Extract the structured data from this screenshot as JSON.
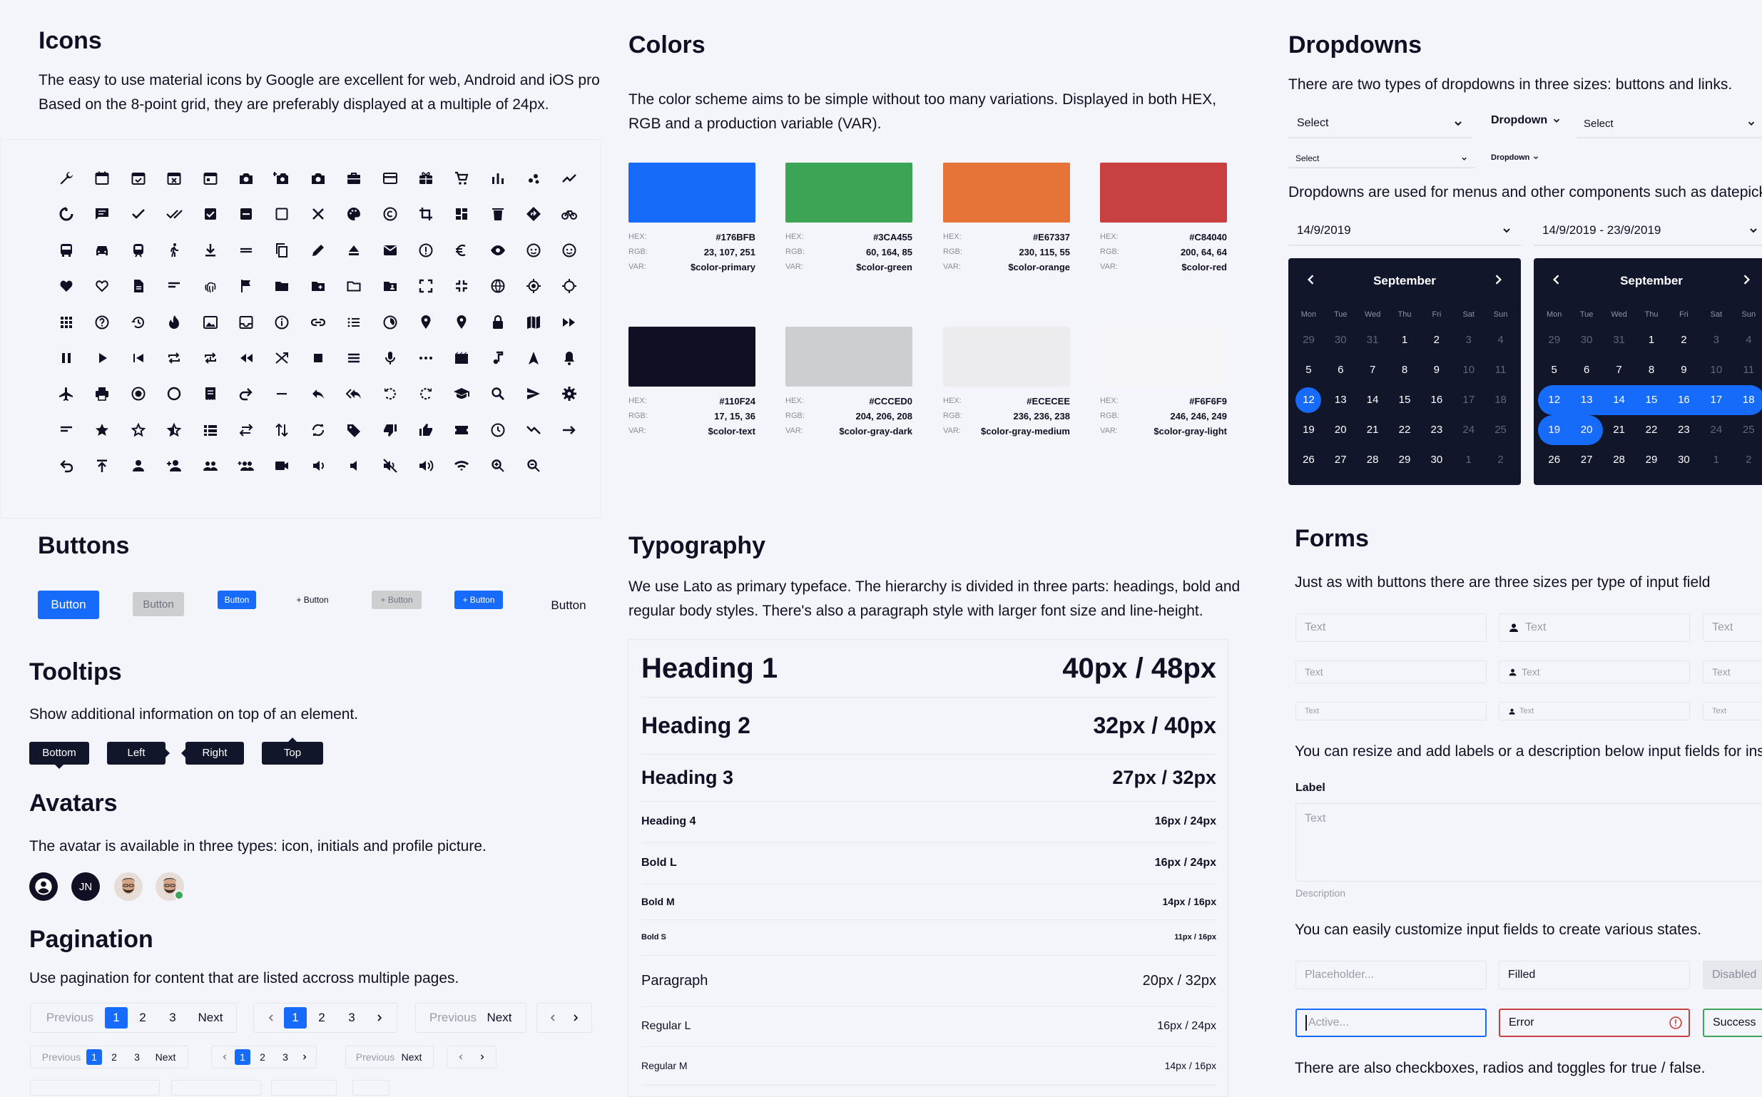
{
  "icons": {
    "title": "Icons",
    "description": "The easy to use material icons by Google are excellent for web, Android and iOS projec Based on the 8-point grid, they are preferably displayed at a multiple of 24px.",
    "line1": "The easy to use material icons by Google are excellent for web, Android and iOS projec",
    "line2": "Based on the 8-point grid, they are preferably displayed at a multiple of 24px.",
    "names": [
      "build-icon",
      "calendar-icon",
      "event-available-icon",
      "event-busy-icon",
      "today-icon",
      "camera-icon",
      "add-a-photo-icon",
      "photo-camera-icon",
      "business-center-icon",
      "credit-card-icon",
      "redeem-icon",
      "shopping-cart-icon",
      "bar-chart-icon",
      "scatter-icon",
      "trending-up-icon",
      "loop-icon",
      "chat-icon",
      "check-icon",
      "done-all-icon",
      "check-box-icon",
      "indeterminate-icon",
      "checkbox-blank-icon",
      "close-icon",
      "palette-icon",
      "copyright-icon",
      "crop-icon",
      "dashboard-icon",
      "delete-icon",
      "directions-icon",
      "bike-icon",
      "bus-icon",
      "car-icon",
      "train-icon",
      "walk-icon",
      "download-icon",
      "drag-handle-icon",
      "copy-icon",
      "edit-icon",
      "eject-icon",
      "email-icon",
      "error-icon",
      "euro-icon",
      "visibility-icon",
      "face-icon",
      "smile-icon",
      "favorite-icon",
      "favorite-border-icon",
      "file-icon",
      "filter-icon",
      "fingerprint-icon",
      "flag-icon",
      "folder-icon",
      "add-folder-icon",
      "folder-open-icon",
      "shared-folder-icon",
      "fullscreen-icon",
      "fullscreen-exit-icon",
      "globe-icon",
      "gps-fixed-icon",
      "gps-icon",
      "apps-icon",
      "help-icon",
      "history-icon",
      "whatshot-icon",
      "image-icon",
      "inbox-icon",
      "info-icon",
      "link-icon",
      "list-icon",
      "timelapse-icon",
      "place-icon",
      "location-icon",
      "lock-icon",
      "map-icon",
      "fast-forward-icon",
      "pause-icon",
      "play-icon",
      "skip-previous-icon",
      "repeat-icon",
      "repeat-one-icon",
      "rewind-icon",
      "shuffle-icon",
      "stop-icon",
      "menu-icon",
      "mic-icon",
      "more-icon",
      "movie-icon",
      "music-icon",
      "navigation-icon",
      "notifications-icon",
      "airplane-icon",
      "print-icon",
      "radio-on-icon",
      "radio-off-icon",
      "receipt-icon",
      "redo-icon",
      "remove-icon",
      "reply-icon",
      "reply-all-icon",
      "rotate-left-icon",
      "rotate-right-icon",
      "school-icon",
      "search-icon",
      "send-icon",
      "settings-icon",
      "short-text-icon",
      "star-icon",
      "star-border-icon",
      "star-half-icon",
      "view-list-icon",
      "swap-horiz-icon",
      "swap-vert-icon",
      "sync-icon",
      "tag-icon",
      "thumb-down-icon",
      "thumb-up-icon",
      "ticket-icon",
      "clock-icon",
      "trending-down-icon",
      "arrow-right-icon",
      "undo-icon",
      "publish-icon",
      "person-icon",
      "person-add-icon",
      "people-icon",
      "group-add-icon",
      "videocam-icon",
      "volume-down-icon",
      "volume-mute-icon",
      "volume-off-icon",
      "volume-up-icon",
      "wifi-icon",
      "zoom-in-icon",
      "zoom-out-icon"
    ]
  },
  "colors": {
    "title": "Colors",
    "line1": "The color scheme aims to be simple without too many variations. Displayed in both HEX,",
    "line2": "RGB and a production variable (VAR).",
    "labels": {
      "hex": "HEX:",
      "rgb": "RGB:",
      "var": "VAR:"
    },
    "swatches": [
      {
        "hex": "#176BFB",
        "rgb": "23, 107, 251",
        "var": "$color-primary"
      },
      {
        "hex": "#3CA455",
        "rgb": "60, 164, 85",
        "var": "$color-green"
      },
      {
        "hex": "#E67337",
        "rgb": "230, 115, 55",
        "var": "$color-orange"
      },
      {
        "hex": "#C84040",
        "rgb": "200, 64, 64",
        "var": "$color-red"
      },
      {
        "hex": "#110F24",
        "rgb": "17, 15, 36",
        "var": "$color-text"
      },
      {
        "hex": "#CCCED0",
        "rgb": "204, 206, 208",
        "var": "$color-gray-dark"
      },
      {
        "hex": "#ECECEE",
        "rgb": "236, 236, 238",
        "var": "$color-gray-medium"
      },
      {
        "hex": "#F6F6F9",
        "rgb": "246, 246, 249",
        "var": "$color-gray-light"
      }
    ]
  },
  "dropdowns": {
    "title": "Dropdowns",
    "intro": "There are two types of dropdowns in three sizes: buttons and links.",
    "select_label": "Select",
    "dropdown_label": "Dropdown",
    "menus_text": "Dropdowns are used for menus and other components such as datepicker",
    "date_single": "14/9/2019",
    "date_range": "14/9/2019 - 23/9/2019",
    "calendar": {
      "month": "September",
      "weekdays": [
        "Mon",
        "Tue",
        "Wed",
        "Thu",
        "Fri",
        "Sat",
        "Sun"
      ],
      "days": [
        "29",
        "30",
        "31",
        "1",
        "2",
        "3",
        "4",
        "5",
        "6",
        "7",
        "8",
        "9",
        "10",
        "11",
        "12",
        "13",
        "14",
        "15",
        "16",
        "17",
        "18",
        "19",
        "20",
        "21",
        "22",
        "23",
        "24",
        "25",
        "26",
        "27",
        "28",
        "29",
        "30",
        "1",
        "2"
      ],
      "muted_indexes": [
        0,
        1,
        2,
        5,
        6,
        12,
        13,
        19,
        20,
        26,
        27,
        33,
        34
      ],
      "selected_single": 14,
      "range_start": 14,
      "range_end": 22
    }
  },
  "buttons": {
    "title": "Buttons",
    "label": "Button",
    "small_plus": "+ Button"
  },
  "tooltips": {
    "title": "Tooltips",
    "description": "Show additional information on top of an element.",
    "bottom": "Bottom",
    "left": "Left",
    "right": "Right",
    "top": "Top"
  },
  "avatars": {
    "title": "Avatars",
    "description": "The avatar is available in three types: icon, initials and profile picture.",
    "initials": "JN"
  },
  "pagination": {
    "title": "Pagination",
    "description": "Use pagination for content that are listed accross multiple pages.",
    "previous": "Previous",
    "next": "Next",
    "pages": [
      "1",
      "2",
      "3"
    ]
  },
  "typography": {
    "title": "Typography",
    "line1": "We use Lato as primary typeface. The hierarchy is divided in three parts: headings, bold and",
    "line2": "regular body styles. There's also a paragraph style with larger font size and line-height.",
    "rows": [
      {
        "name": "Heading 1",
        "spec": "40px / 48px"
      },
      {
        "name": "Heading 2",
        "spec": "32px / 40px"
      },
      {
        "name": "Heading 3",
        "spec": "27px / 32px"
      },
      {
        "name": "Heading 4",
        "spec": "16px / 24px"
      },
      {
        "name": "Bold L",
        "spec": "16px / 24px"
      },
      {
        "name": "Bold M",
        "spec": "14px / 16px"
      },
      {
        "name": "Bold S",
        "spec": "11px / 16px"
      },
      {
        "name": "Paragraph",
        "spec": "20px / 32px"
      },
      {
        "name": "Regular L",
        "spec": "16px / 24px"
      },
      {
        "name": "Regular M",
        "spec": "14px / 16px"
      }
    ]
  },
  "forms": {
    "title": "Forms",
    "sizes_text": "Just as with buttons there are three sizes per type of input field",
    "placeholder_text": "Text",
    "resize_text": "You can resize and add labels or a description below input fields for inst",
    "label": "Label",
    "description": "Description",
    "states_text": "You can easily customize input fields to create various states.",
    "placeholder": "Placeholder...",
    "filled": "Filled",
    "disabled": "Disabled",
    "active": "Active...",
    "error": "Error",
    "success": "Success",
    "bool_text": "There are also checkboxes, radios and toggles for true / false."
  }
}
